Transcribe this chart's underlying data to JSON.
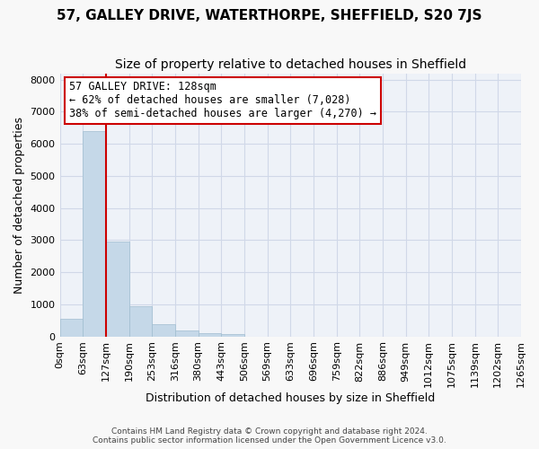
{
  "title": "57, GALLEY DRIVE, WATERTHORPE, SHEFFIELD, S20 7JS",
  "subtitle": "Size of property relative to detached houses in Sheffield",
  "xlabel": "Distribution of detached houses by size in Sheffield",
  "ylabel": "Number of detached properties",
  "footer_line1": "Contains HM Land Registry data © Crown copyright and database right 2024.",
  "footer_line2": "Contains public sector information licensed under the Open Government Licence v3.0.",
  "bin_labels": [
    "0sqm",
    "63sqm",
    "127sqm",
    "190sqm",
    "253sqm",
    "316sqm",
    "380sqm",
    "443sqm",
    "506sqm",
    "569sqm",
    "633sqm",
    "696sqm",
    "759sqm",
    "822sqm",
    "886sqm",
    "949sqm",
    "1012sqm",
    "1075sqm",
    "1139sqm",
    "1202sqm",
    "1265sqm"
  ],
  "bar_heights": [
    560,
    6400,
    2950,
    950,
    370,
    175,
    100,
    75,
    0,
    0,
    0,
    0,
    0,
    0,
    0,
    0,
    0,
    0,
    0,
    0
  ],
  "bar_color": "#c5d8e8",
  "bar_edge_color": "#a0bdd0",
  "ylim": [
    0,
    8200
  ],
  "yticks": [
    0,
    1000,
    2000,
    3000,
    4000,
    5000,
    6000,
    7000,
    8000
  ],
  "property_bin_index": 2,
  "red_line_color": "#cc0000",
  "annotation_text_line1": "57 GALLEY DRIVE: 128sqm",
  "annotation_text_line2": "← 62% of detached houses are smaller (7,028)",
  "annotation_text_line3": "38% of semi-detached houses are larger (4,270) →",
  "annotation_box_color": "#ffffff",
  "annotation_box_edge_color": "#cc0000",
  "grid_color": "#d0d8e8",
  "background_color": "#eef2f8",
  "fig_background_color": "#f8f8f8",
  "title_fontsize": 11,
  "subtitle_fontsize": 10,
  "axis_label_fontsize": 9,
  "tick_fontsize": 8,
  "annotation_fontsize": 8.5,
  "footer_fontsize": 6.5,
  "footer_color": "#444444"
}
